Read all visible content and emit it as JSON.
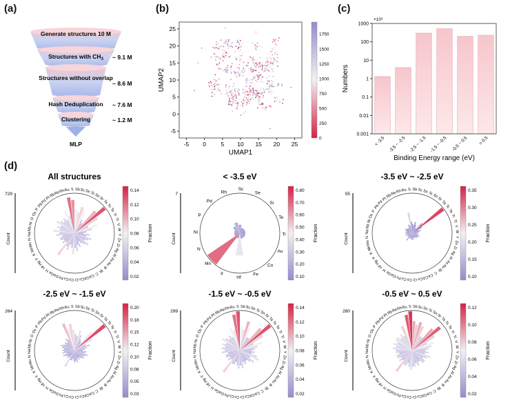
{
  "panel_labels": {
    "a": "(a)",
    "b": "(b)",
    "c": "(c)",
    "d": "(d)"
  },
  "funnel": {
    "stages": [
      {
        "label": "Generate structures 10 M",
        "count": ""
      },
      {
        "label": "Structures with CH",
        "sub": "3",
        "count": "~ 9.1 M"
      },
      {
        "label": "Structures without overlap",
        "count": "~ 8.6 M"
      },
      {
        "label": "Hash Deduplication",
        "count": "~ 7.6 M"
      },
      {
        "label": "Clustering",
        "count": "~ 1.2 M"
      },
      {
        "label": "MLP",
        "count": ""
      }
    ]
  },
  "chart_data": [
    {
      "type": "scatter",
      "xlabel": "UMAP1",
      "ylabel": "UMAP2",
      "colorbar_label": "Cluster",
      "xlim": [
        -7,
        27
      ],
      "ylim": [
        -7,
        27
      ],
      "xticks": [
        -5,
        0,
        5,
        10,
        15,
        20,
        25
      ],
      "yticks": [
        -5,
        0,
        5,
        10,
        15,
        20,
        25
      ],
      "colorbar_ticks": [
        0,
        250,
        500,
        750,
        1000,
        1250,
        1500,
        1750
      ],
      "colorbar_range": [
        0,
        1950
      ]
    },
    {
      "type": "bar",
      "categories": [
        "< -3.5",
        "-3.5 ~ -2.5",
        "-2.5 ~ -1.5",
        "-1.5 ~ -0.5",
        "-0.5 ~ 0.5",
        "> 0.5"
      ],
      "values": [
        1.3,
        4,
        300,
        520,
        200,
        230
      ],
      "ylabel": "Numbers",
      "xlabel": "Binding Energy range (eV)",
      "scale_note": "×10³",
      "yscale": "log",
      "ylim": [
        0.001,
        1000
      ],
      "yticks": [
        "0.001",
        "0.01",
        "0.1",
        "1",
        "10",
        "100",
        "1000"
      ]
    },
    {
      "type": "polar-bar",
      "title": "All structures",
      "count_label": "Count",
      "count_max": "729",
      "colorbar_label": "Fraction",
      "colorbar_ticks": [
        "0.02",
        "0.04",
        "0.06",
        "0.08",
        "0.10",
        "0.12",
        "0.14"
      ],
      "elements": [
        "Se",
        "Si",
        "Sn",
        "Sr",
        "Ta",
        "Tc",
        "Te",
        "Ti",
        "Tl",
        "V",
        "W",
        "Y",
        "Zn",
        "Zr",
        "Ag",
        "Al",
        "As",
        "Au",
        "B",
        "Bi",
        "C",
        "Ca",
        "Cd",
        "Co",
        "Cr",
        "Cs",
        "Cu",
        "Fe",
        "Ga",
        "Ge",
        "H",
        "Hf",
        "Hg",
        "Ir",
        "K",
        "Mn",
        "Mo",
        "N",
        "Na",
        "Nb",
        "Ni",
        "O",
        "Os",
        "P",
        "Pb",
        "Pd",
        "Pt",
        "Rb",
        "Re",
        "Rh",
        "Ru",
        "S",
        "Sb",
        "Sc"
      ],
      "values": [
        0.09,
        0.08,
        0.05,
        0.04,
        0.1,
        0.13,
        0.09,
        0.05,
        0.08,
        0.06,
        0.04,
        0.03,
        0.05,
        0.04,
        0.06,
        0.05,
        0.04,
        0.06,
        0.05,
        0.04,
        0.03,
        0.05,
        0.04,
        0.06,
        0.05,
        0.07,
        0.05,
        0.04,
        0.06,
        0.05,
        0.09,
        0.04,
        0.05,
        0.04,
        0.05,
        0.05,
        0.04,
        0.06,
        0.05,
        0.07,
        0.05,
        0.06,
        0.05,
        0.07,
        0.06,
        0.05,
        0.06,
        0.05,
        0.08,
        0.06,
        0.12,
        0.11,
        0.08,
        0.07
      ]
    },
    {
      "type": "polar-bar",
      "title": "< -3.5 eV",
      "count_label": "Count",
      "count_max": "7",
      "colorbar_label": "Fraction",
      "colorbar_ticks": [
        "0.10",
        "0.20",
        "0.30",
        "0.40",
        "0.50",
        "0.60",
        "0.70",
        "0.80"
      ],
      "elements": [
        "Se",
        "Si",
        "Te",
        "Ti",
        "Au",
        "Co",
        "Fe",
        "Hf",
        "Ir",
        "Mn",
        "N",
        "Ni",
        "P",
        "Pd",
        "Rh",
        "Sc"
      ],
      "values": [
        0.1,
        0.1,
        0.1,
        0.1,
        0.1,
        0.1,
        0.1,
        0.4,
        0.1,
        0.7,
        0.1,
        0.1,
        0.1,
        0.15,
        0.2,
        0.15
      ]
    },
    {
      "type": "polar-bar",
      "title": "-3.5 eV ~ -2.5 eV",
      "count_label": "Count",
      "count_max": "55",
      "colorbar_label": "Fraction",
      "colorbar_ticks": [
        "0.10",
        "0.15",
        "0.20",
        "0.25",
        "0.30",
        "0.35"
      ],
      "elements": [
        "Se",
        "Si",
        "Sn",
        "Sr",
        "Ta",
        "Tc",
        "Te",
        "Ti",
        "Tl",
        "V",
        "W",
        "Y",
        "Zn",
        "Zr",
        "Ag",
        "Al",
        "As",
        "Au",
        "Bi",
        "C",
        "Ca",
        "Cd",
        "Co",
        "Cr",
        "Cs",
        "Cu",
        "Fe",
        "Ga",
        "Ge",
        "H",
        "Hf",
        "Hg",
        "Ir",
        "K",
        "Mn",
        "Mo",
        "N",
        "Na",
        "Nb",
        "Ni",
        "Os",
        "P",
        "Pb",
        "Pd",
        "Pt",
        "Rb",
        "Re",
        "Rh",
        "Ru",
        "S",
        "Sb",
        "Sc"
      ],
      "values": [
        0.1,
        0.08,
        0.06,
        0.05,
        0.12,
        0.34,
        0.1,
        0.06,
        0.08,
        0.06,
        0.05,
        0.04,
        0.06,
        0.05,
        0.07,
        0.06,
        0.05,
        0.06,
        0.05,
        0.04,
        0.05,
        0.04,
        0.06,
        0.05,
        0.06,
        0.05,
        0.04,
        0.05,
        0.05,
        0.08,
        0.04,
        0.05,
        0.04,
        0.05,
        0.06,
        0.04,
        0.06,
        0.05,
        0.06,
        0.05,
        0.06,
        0.07,
        0.06,
        0.05,
        0.06,
        0.05,
        0.08,
        0.07,
        0.18,
        0.1,
        0.08,
        0.07
      ]
    },
    {
      "type": "polar-bar",
      "title": "-2.5 eV ~ -1.5 eV",
      "count_label": "Count",
      "count_max": "264",
      "colorbar_label": "Fraction",
      "colorbar_ticks": [
        "0.03",
        "0.05",
        "0.08",
        "0.10",
        "0.12",
        "0.15",
        "0.18",
        "0.20"
      ],
      "elements": [
        "Se",
        "Si",
        "Sn",
        "Sr",
        "Ta",
        "Tc",
        "Te",
        "Ti",
        "Tl",
        "V",
        "W",
        "Y",
        "Zn",
        "Zr",
        "Ag",
        "Al",
        "As",
        "Au",
        "B",
        "Bi",
        "C",
        "Ca",
        "Cd",
        "Co",
        "Cr",
        "Cs",
        "Cu",
        "Fe",
        "Ga",
        "Ge",
        "H",
        "Hf",
        "Hg",
        "Ir",
        "K",
        "Mn",
        "Mo",
        "N",
        "Na",
        "Nb",
        "Ni",
        "O",
        "Os",
        "P",
        "Pb",
        "Pd",
        "Pt",
        "Rb",
        "Re",
        "Rh",
        "Ru",
        "S",
        "Sb",
        "Sc"
      ],
      "values": [
        0.1,
        0.08,
        0.06,
        0.05,
        0.12,
        0.19,
        0.1,
        0.06,
        0.08,
        0.06,
        0.05,
        0.04,
        0.06,
        0.05,
        0.07,
        0.06,
        0.05,
        0.06,
        0.05,
        0.04,
        0.05,
        0.04,
        0.06,
        0.05,
        0.06,
        0.05,
        0.04,
        0.05,
        0.05,
        0.09,
        0.04,
        0.05,
        0.04,
        0.05,
        0.06,
        0.04,
        0.06,
        0.05,
        0.06,
        0.05,
        0.06,
        0.07,
        0.06,
        0.05,
        0.06,
        0.05,
        0.07,
        0.06,
        0.14,
        0.11,
        0.13,
        0.1,
        0.08,
        0.07
      ]
    },
    {
      "type": "polar-bar",
      "title": "-1.5 eV ~ -0.5 eV",
      "count_label": "Count",
      "count_max": "299",
      "colorbar_label": "Fraction",
      "colorbar_ticks": [
        "0.02",
        "0.04",
        "0.06",
        "0.08",
        "0.10",
        "0.12",
        "0.14"
      ],
      "elements": [
        "Se",
        "Si",
        "Sn",
        "Sr",
        "Ta",
        "Tc",
        "Te",
        "Ti",
        "Tl",
        "V",
        "W",
        "Y",
        "Zn",
        "Zr",
        "Ag",
        "Al",
        "As",
        "Au",
        "B",
        "Bi",
        "C",
        "Ca",
        "Cd",
        "Co",
        "Cr",
        "Cs",
        "Cu",
        "Fe",
        "Ga",
        "Ge",
        "H",
        "Hf",
        "Hg",
        "Ir",
        "K",
        "Mn",
        "Mo",
        "N",
        "Na",
        "Nb",
        "Ni",
        "O",
        "Os",
        "P",
        "Pb",
        "Pd",
        "Pt",
        "Rb",
        "Re",
        "Rh",
        "Ru",
        "S",
        "Sb",
        "Sc"
      ],
      "values": [
        0.1,
        0.08,
        0.05,
        0.05,
        0.1,
        0.13,
        0.09,
        0.05,
        0.08,
        0.06,
        0.05,
        0.04,
        0.05,
        0.04,
        0.06,
        0.07,
        0.04,
        0.06,
        0.05,
        0.04,
        0.04,
        0.05,
        0.04,
        0.06,
        0.05,
        0.06,
        0.05,
        0.04,
        0.05,
        0.05,
        0.09,
        0.04,
        0.05,
        0.04,
        0.05,
        0.05,
        0.04,
        0.06,
        0.05,
        0.06,
        0.05,
        0.06,
        0.05,
        0.07,
        0.06,
        0.05,
        0.06,
        0.05,
        0.08,
        0.07,
        0.12,
        0.13,
        0.08,
        0.07
      ]
    },
    {
      "type": "polar-bar",
      "title": "-0.5 eV ~ 0.5 eV",
      "count_label": "Count",
      "count_max": "280",
      "colorbar_label": "Fraction",
      "colorbar_ticks": [
        "0.02",
        "0.04",
        "0.06",
        "0.08",
        "0.10",
        "0.12"
      ],
      "elements": [
        "Se",
        "Si",
        "Sn",
        "Sr",
        "Ta",
        "Tc",
        "Te",
        "Ti",
        "Tl",
        "V",
        "W",
        "Y",
        "Zn",
        "Zr",
        "Ag",
        "Al",
        "As",
        "Au",
        "B",
        "Bi",
        "C",
        "Ca",
        "Cd",
        "Co",
        "Cr",
        "Cs",
        "Cu",
        "Fe",
        "Ga",
        "Ge",
        "H",
        "Hf",
        "Hg",
        "Ir",
        "K",
        "Mn",
        "Mo",
        "N",
        "Na",
        "Nb",
        "Ni",
        "O",
        "Os",
        "P",
        "Pb",
        "Pd",
        "Pt",
        "Rb",
        "Re",
        "Rh",
        "Ru",
        "S",
        "Sb",
        "Sc"
      ],
      "values": [
        0.09,
        0.08,
        0.05,
        0.05,
        0.09,
        0.11,
        0.08,
        0.05,
        0.07,
        0.06,
        0.05,
        0.04,
        0.05,
        0.04,
        0.06,
        0.05,
        0.04,
        0.05,
        0.05,
        0.04,
        0.04,
        0.05,
        0.04,
        0.05,
        0.05,
        0.06,
        0.05,
        0.04,
        0.05,
        0.05,
        0.08,
        0.04,
        0.05,
        0.04,
        0.05,
        0.05,
        0.04,
        0.05,
        0.05,
        0.06,
        0.05,
        0.06,
        0.05,
        0.06,
        0.06,
        0.05,
        0.06,
        0.05,
        0.08,
        0.07,
        0.11,
        0.12,
        0.09,
        0.08
      ]
    }
  ]
}
